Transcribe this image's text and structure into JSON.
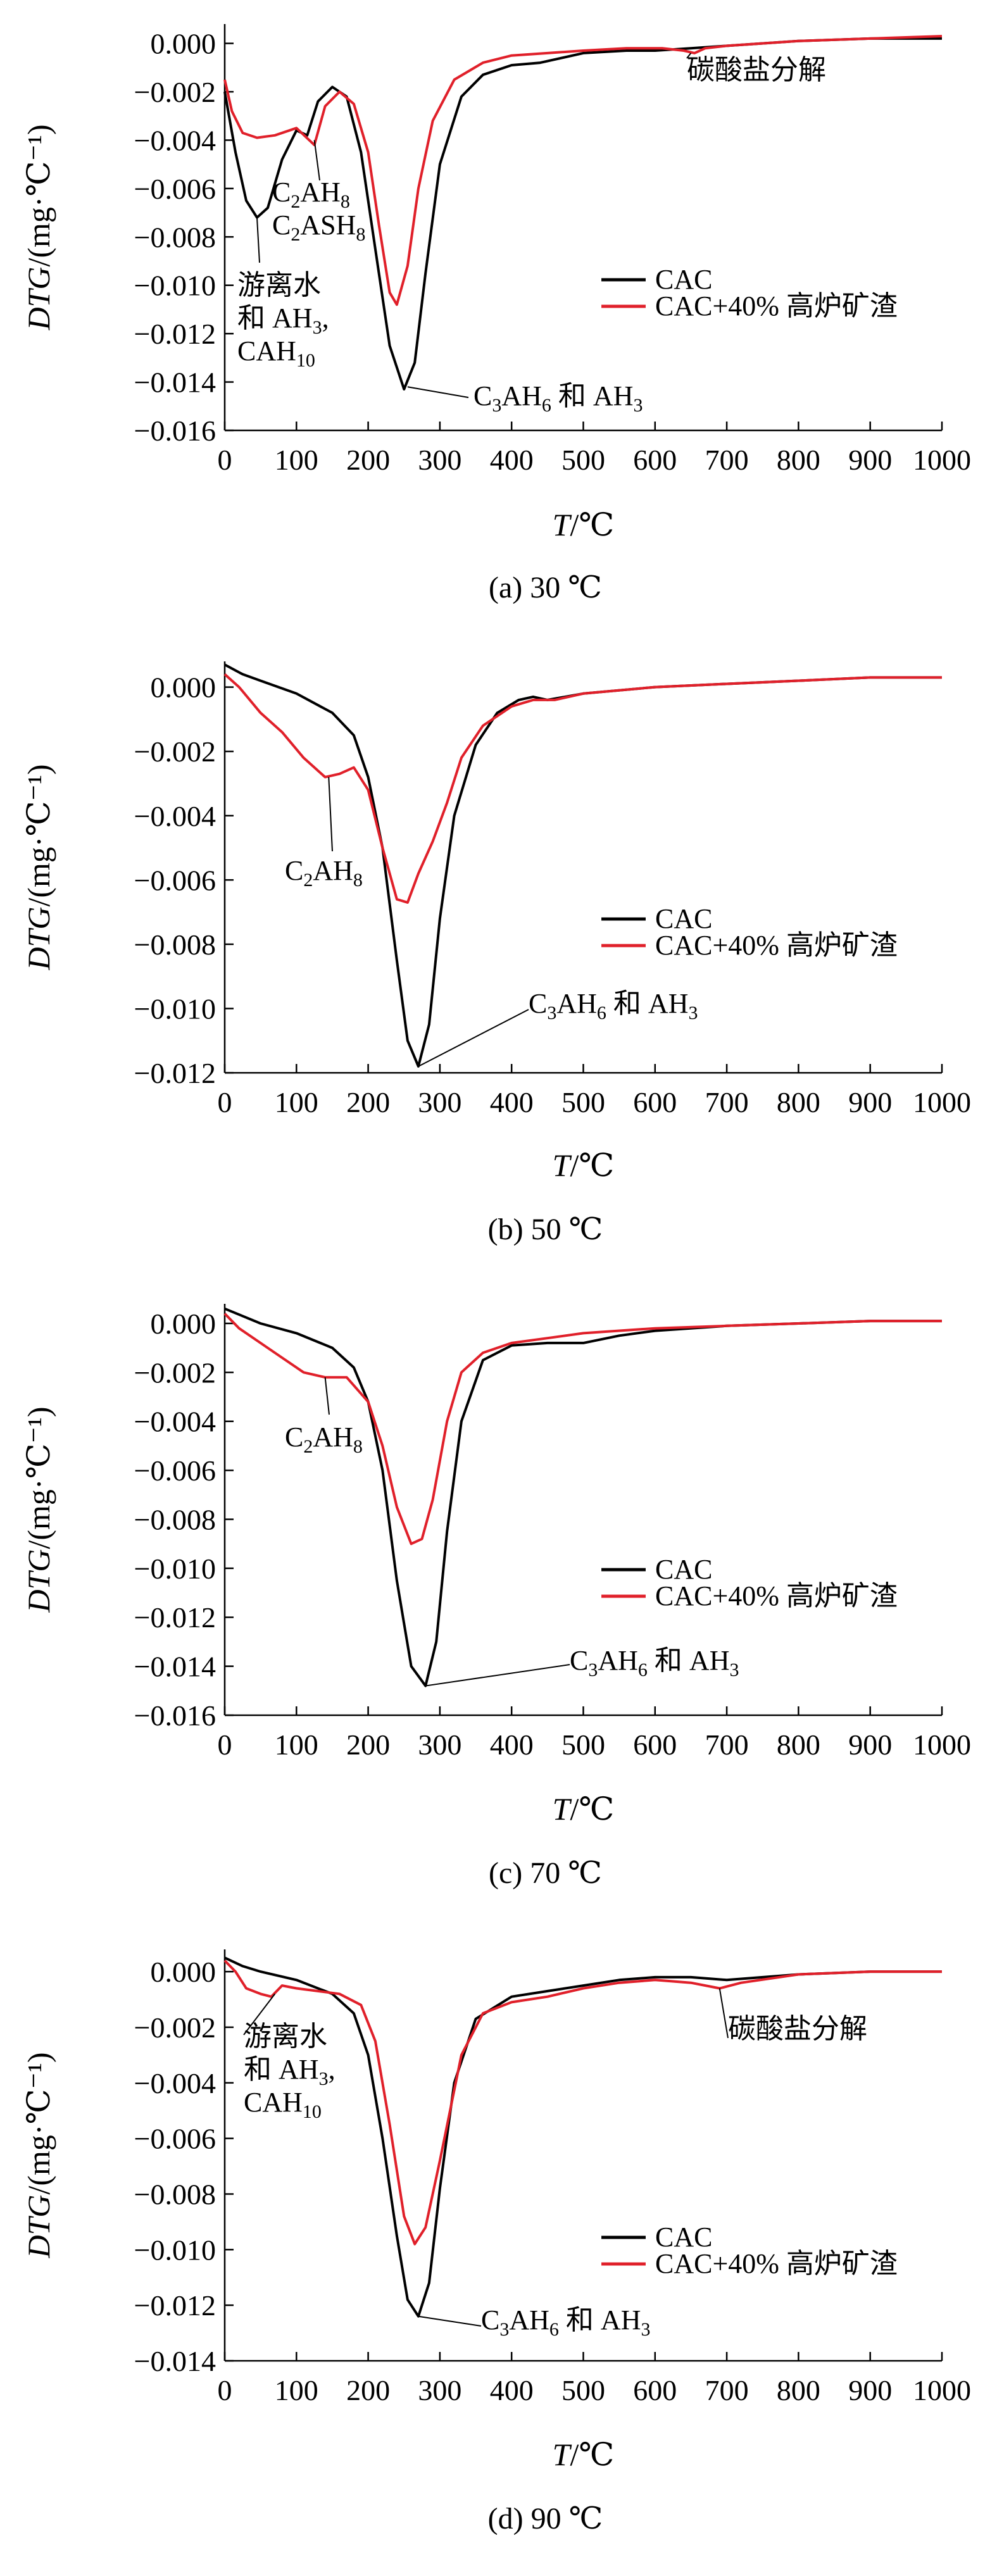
{
  "chart_data": [
    {
      "type": "line",
      "caption": "(a) 30 ℃",
      "xlabel": "T/℃",
      "ylabel": "DTG/(mg·℃⁻¹)",
      "xlim": [
        0,
        1000
      ],
      "ylim": [
        -0.016,
        0.0008
      ],
      "xticks": [
        0,
        100,
        200,
        300,
        400,
        500,
        600,
        700,
        800,
        900,
        1000
      ],
      "yticks": [
        0,
        -0.002,
        -0.004,
        -0.006,
        -0.008,
        -0.01,
        -0.012,
        -0.014,
        -0.016
      ],
      "ytick_labels": [
        "0.000",
        "−0.002",
        "−0.004",
        "−0.006",
        "−0.008",
        "−0.010",
        "−0.012",
        "−0.014",
        "−0.016"
      ],
      "legend": [
        "CAC",
        "CAC+40% 高炉矿渣"
      ],
      "legend_position": "right",
      "series": [
        {
          "name": "CAC",
          "color": "#000000",
          "x": [
            0,
            15,
            30,
            45,
            60,
            80,
            100,
            115,
            130,
            150,
            170,
            190,
            210,
            230,
            250,
            265,
            280,
            300,
            330,
            360,
            400,
            440,
            500,
            560,
            600,
            650,
            700,
            800,
            900,
            1000
          ],
          "y": [
            -0.002,
            -0.0045,
            -0.0065,
            -0.0072,
            -0.0068,
            -0.0048,
            -0.0036,
            -0.0038,
            -0.0024,
            -0.0018,
            -0.0022,
            -0.0045,
            -0.0085,
            -0.0125,
            -0.0143,
            -0.0132,
            -0.0095,
            -0.005,
            -0.0022,
            -0.0013,
            -0.0009,
            -0.0008,
            -0.0004,
            -0.0003,
            -0.0003,
            -0.0002,
            -0.0001,
            0.0001,
            0.0002,
            0.0002
          ]
        },
        {
          "name": "CAC+40% 高炉矿渣",
          "color": "#e0202a",
          "x": [
            0,
            10,
            25,
            45,
            70,
            100,
            125,
            140,
            160,
            180,
            200,
            215,
            230,
            240,
            255,
            270,
            290,
            320,
            360,
            400,
            450,
            500,
            560,
            610,
            640,
            655,
            670,
            700,
            800,
            900,
            1000
          ],
          "y": [
            -0.0015,
            -0.0028,
            -0.0037,
            -0.0039,
            -0.0038,
            -0.0035,
            -0.0042,
            -0.0026,
            -0.002,
            -0.0025,
            -0.0045,
            -0.0075,
            -0.0103,
            -0.0108,
            -0.0092,
            -0.006,
            -0.0032,
            -0.0015,
            -0.0008,
            -0.0005,
            -0.0004,
            -0.0003,
            -0.0002,
            -0.0002,
            -0.0003,
            -0.0004,
            -0.0002,
            -0.0001,
            0.0001,
            0.0002,
            0.0003
          ]
        }
      ],
      "annotations": [
        {
          "lines": [
            "碳酸盐分解"
          ],
          "x": 650,
          "y": -0.0004
        },
        {
          "lines": [
            "C2AH8",
            "C2ASH8"
          ],
          "x": 125,
          "y": -0.004
        },
        {
          "lines": [
            "游离水",
            "和 AH3,",
            "CAH10"
          ],
          "x": 45,
          "y": -0.0072
        },
        {
          "lines": [
            "C3AH6 和 AH3"
          ],
          "x": 255,
          "y": -0.0142
        }
      ]
    },
    {
      "type": "line",
      "caption": "(b) 50 ℃",
      "xlabel": "T/℃",
      "ylabel": "DTG/(mg·℃⁻¹)",
      "xlim": [
        0,
        1000
      ],
      "ylim": [
        -0.012,
        0.0008
      ],
      "xticks": [
        0,
        100,
        200,
        300,
        400,
        500,
        600,
        700,
        800,
        900,
        1000
      ],
      "yticks": [
        0,
        -0.002,
        -0.004,
        -0.006,
        -0.008,
        -0.01,
        -0.012
      ],
      "ytick_labels": [
        "0.000",
        "−0.002",
        "−0.004",
        "−0.006",
        "−0.008",
        "−0.010",
        "−0.012"
      ],
      "legend": [
        "CAC",
        "CAC+40% 高炉矿渣"
      ],
      "legend_position": "right",
      "series": [
        {
          "name": "CAC",
          "color": "#000000",
          "x": [
            0,
            25,
            50,
            100,
            150,
            180,
            200,
            220,
            240,
            255,
            270,
            285,
            300,
            320,
            350,
            380,
            410,
            430,
            450,
            500,
            600,
            700,
            800,
            900,
            1000
          ],
          "y": [
            0.0007,
            0.0004,
            0.0002,
            -0.0002,
            -0.0008,
            -0.0015,
            -0.0028,
            -0.005,
            -0.0085,
            -0.011,
            -0.0118,
            -0.0105,
            -0.0072,
            -0.004,
            -0.0018,
            -0.0008,
            -0.0004,
            -0.0003,
            -0.0004,
            -0.0002,
            0,
            0.0001,
            0.0002,
            0.0003,
            0.0003
          ]
        },
        {
          "name": "CAC+40% 高炉矿渣",
          "color": "#e0202a",
          "x": [
            0,
            20,
            50,
            80,
            110,
            140,
            160,
            180,
            200,
            220,
            240,
            255,
            270,
            290,
            310,
            330,
            360,
            400,
            430,
            460,
            500,
            600,
            700,
            800,
            900,
            1000
          ],
          "y": [
            0.0004,
            0,
            -0.0008,
            -0.0014,
            -0.0022,
            -0.0028,
            -0.0027,
            -0.0025,
            -0.0032,
            -0.005,
            -0.0066,
            -0.0067,
            -0.0058,
            -0.0048,
            -0.0036,
            -0.0022,
            -0.0012,
            -0.0006,
            -0.0004,
            -0.0004,
            -0.0002,
            0,
            0.0001,
            0.0002,
            0.0003,
            0.0003
          ]
        }
      ],
      "annotations": [
        {
          "lines": [
            "C2AH8"
          ],
          "x": 145,
          "y": -0.0028
        },
        {
          "lines": [
            "C3AH6 和 AH3"
          ],
          "x": 270,
          "y": -0.0118
        }
      ]
    },
    {
      "type": "line",
      "caption": "(c) 70 ℃",
      "xlabel": "T/℃",
      "ylabel": "DTG/(mg·℃⁻¹)",
      "xlim": [
        0,
        1000
      ],
      "ylim": [
        -0.016,
        0.0008
      ],
      "xticks": [
        0,
        100,
        200,
        300,
        400,
        500,
        600,
        700,
        800,
        900,
        1000
      ],
      "yticks": [
        0,
        -0.002,
        -0.004,
        -0.006,
        -0.008,
        -0.01,
        -0.012,
        -0.014,
        -0.016
      ],
      "ytick_labels": [
        "0.000",
        "−0.002",
        "−0.004",
        "−0.006",
        "−0.008",
        "−0.010",
        "−0.012",
        "−0.014",
        "−0.016"
      ],
      "legend": [
        "CAC",
        "CAC+40% 高炉矿渣"
      ],
      "legend_position": "right",
      "series": [
        {
          "name": "CAC",
          "color": "#000000",
          "x": [
            0,
            25,
            50,
            100,
            150,
            180,
            200,
            220,
            240,
            260,
            280,
            295,
            310,
            330,
            360,
            400,
            450,
            500,
            550,
            600,
            700,
            800,
            900,
            1000
          ],
          "y": [
            0.0006,
            0.0003,
            0,
            -0.0004,
            -0.001,
            -0.0018,
            -0.0032,
            -0.006,
            -0.0105,
            -0.014,
            -0.0148,
            -0.013,
            -0.0085,
            -0.004,
            -0.0015,
            -0.0009,
            -0.0008,
            -0.0008,
            -0.0005,
            -0.0003,
            -0.0001,
            0,
            0.0001,
            0.0001
          ]
        },
        {
          "name": "CAC+40% 高炉矿渣",
          "color": "#e0202a",
          "x": [
            0,
            20,
            50,
            80,
            110,
            140,
            170,
            200,
            220,
            240,
            260,
            275,
            290,
            310,
            330,
            360,
            400,
            450,
            500,
            600,
            700,
            800,
            900,
            1000
          ],
          "y": [
            0.0004,
            -0.0002,
            -0.0008,
            -0.0014,
            -0.002,
            -0.0022,
            -0.0022,
            -0.0032,
            -0.005,
            -0.0075,
            -0.009,
            -0.0088,
            -0.0072,
            -0.004,
            -0.002,
            -0.0012,
            -0.0008,
            -0.0006,
            -0.0004,
            -0.0002,
            -0.0001,
            0,
            0.0001,
            0.0001
          ]
        }
      ],
      "annotations": [
        {
          "lines": [
            "C2AH8"
          ],
          "x": 140,
          "y": -0.0022
        },
        {
          "lines": [
            "C3AH6 和 AH3"
          ],
          "x": 280,
          "y": -0.0148
        }
      ]
    },
    {
      "type": "line",
      "caption": "(d) 90 ℃",
      "xlabel": "T/℃",
      "ylabel": "DTG/(mg·℃⁻¹)",
      "xlim": [
        0,
        1000
      ],
      "ylim": [
        -0.014,
        0.0008
      ],
      "xticks": [
        0,
        100,
        200,
        300,
        400,
        500,
        600,
        700,
        800,
        900,
        1000
      ],
      "yticks": [
        0,
        -0.002,
        -0.004,
        -0.006,
        -0.008,
        -0.01,
        -0.012,
        -0.014
      ],
      "ytick_labels": [
        "0.000",
        "−0.002",
        "−0.004",
        "−0.006",
        "−0.008",
        "−0.010",
        "−0.012",
        "−0.014"
      ],
      "legend": [
        "CAC",
        "CAC+40% 高炉矿渣"
      ],
      "legend_position": "right",
      "series": [
        {
          "name": "CAC",
          "color": "#000000",
          "x": [
            0,
            25,
            50,
            100,
            150,
            180,
            200,
            220,
            240,
            255,
            270,
            285,
            300,
            320,
            350,
            400,
            450,
            500,
            550,
            600,
            650,
            700,
            800,
            900,
            1000
          ],
          "y": [
            0.0005,
            0.0002,
            0,
            -0.0003,
            -0.0008,
            -0.0015,
            -0.003,
            -0.006,
            -0.0095,
            -0.0118,
            -0.0124,
            -0.0112,
            -0.0078,
            -0.004,
            -0.0017,
            -0.0009,
            -0.0007,
            -0.0005,
            -0.0003,
            -0.0002,
            -0.0002,
            -0.0003,
            -0.0001,
            0,
            0
          ]
        },
        {
          "name": "CAC+40% 高炉矿渣",
          "color": "#e0202a",
          "x": [
            0,
            15,
            30,
            50,
            65,
            80,
            100,
            130,
            160,
            190,
            210,
            230,
            250,
            265,
            280,
            300,
            330,
            360,
            400,
            450,
            500,
            550,
            600,
            650,
            690,
            720,
            800,
            900,
            1000
          ],
          "y": [
            0.0004,
            0,
            -0.0006,
            -0.0008,
            -0.0009,
            -0.0005,
            -0.0006,
            -0.0007,
            -0.0008,
            -0.0012,
            -0.0025,
            -0.0055,
            -0.0088,
            -0.0098,
            -0.0092,
            -0.0068,
            -0.003,
            -0.0015,
            -0.0011,
            -0.0009,
            -0.0006,
            -0.0004,
            -0.0003,
            -0.0004,
            -0.0006,
            -0.0004,
            -0.0001,
            0,
            0
          ]
        }
      ],
      "annotations": [
        {
          "lines": [
            "碳酸盐分解"
          ],
          "x": 690,
          "y": -0.0006
        },
        {
          "lines": [
            "游离水",
            "和 AH3,",
            "CAH10"
          ],
          "x": 70,
          "y": -0.0008
        },
        {
          "lines": [
            "C3AH6 和 AH3"
          ],
          "x": 270,
          "y": -0.0124
        }
      ]
    }
  ]
}
